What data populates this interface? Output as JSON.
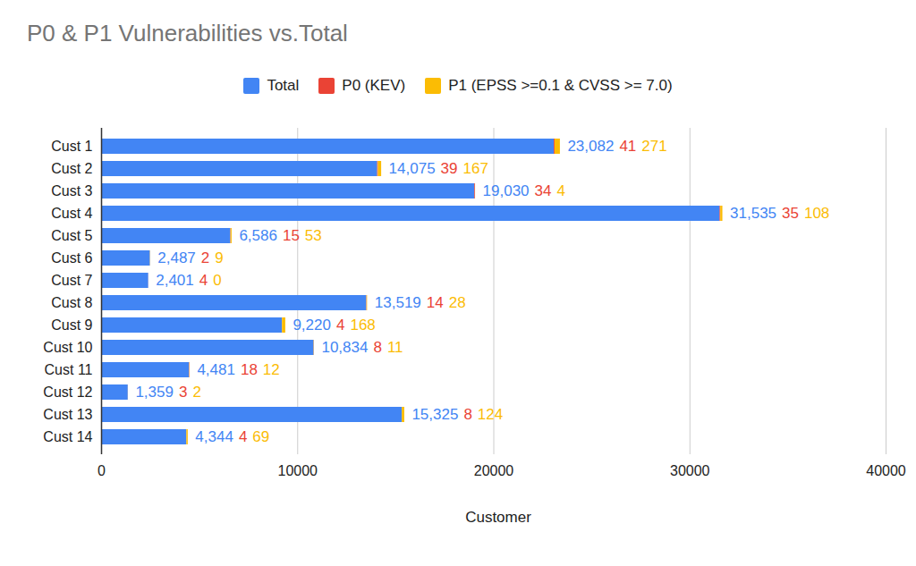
{
  "chart_data": {
    "type": "bar",
    "title": "P0 & P1 Vulnerabilities vs.Total",
    "x_label": "Customer",
    "orientation": "horizontal",
    "stacked": true,
    "data_labels": true,
    "grid": true,
    "legend": "top",
    "categories": [
      "Cust 1",
      "Cust 2",
      "Cust 3",
      "Cust 4",
      "Cust 5",
      "Cust 6",
      "Cust 7",
      "Cust 8",
      "Cust 9",
      "Cust 10",
      "Cust 11",
      "Cust 12",
      "Cust 13",
      "Cust 14"
    ],
    "series": [
      {
        "name": "Total",
        "color": "#4285f4",
        "values": [
          23082,
          14075,
          19030,
          31535,
          6586,
          2487,
          2401,
          13519,
          9220,
          10834,
          4481,
          1359,
          15325,
          4344
        ],
        "value_labels": [
          "23,082",
          "14,075",
          "19,030",
          "31,535",
          "6,586",
          "2,487",
          "2,401",
          "13,519",
          "9,220",
          "10,834",
          "4,481",
          "1,359",
          "15,325",
          "4,344"
        ]
      },
      {
        "name": "P0 (KEV)",
        "color": "#ea4335",
        "values": [
          41,
          39,
          34,
          35,
          15,
          2,
          4,
          14,
          4,
          8,
          18,
          3,
          8,
          4
        ]
      },
      {
        "name": "P1 (EPSS >=0.1 & CVSS >= 7.0)",
        "color": "#fbbc04",
        "values": [
          271,
          167,
          4,
          108,
          53,
          9,
          0,
          28,
          168,
          11,
          12,
          2,
          124,
          69
        ]
      }
    ],
    "xlim": [
      0,
      40000
    ],
    "xticks": [
      0,
      10000,
      20000,
      30000,
      40000
    ]
  }
}
